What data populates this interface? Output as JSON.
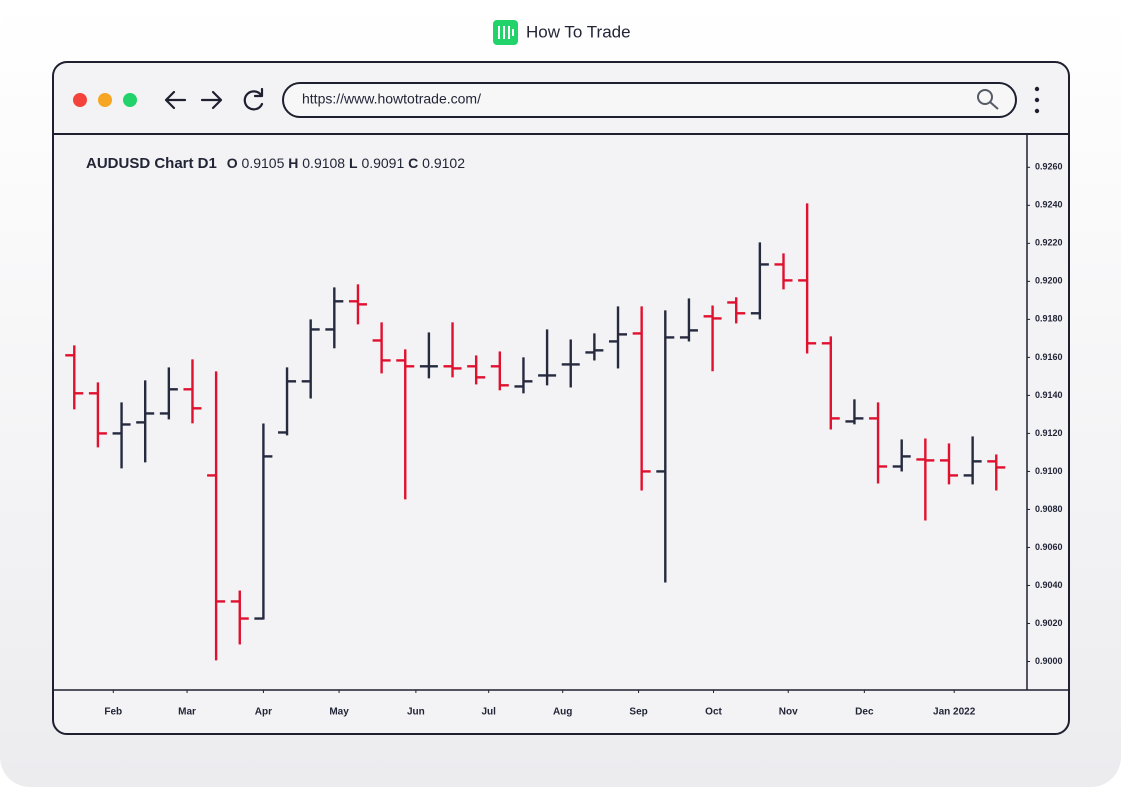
{
  "page": {
    "brand": "How To Trade",
    "url": "https://www.howtotrade.com/"
  },
  "chart_data": {
    "type": "ohlc",
    "title": "AUDUSD Chart D1",
    "summary": [
      {
        "label": "O",
        "value": 0.9105
      },
      {
        "label": "H",
        "value": 0.9108
      },
      {
        "label": "L",
        "value": 0.9091
      },
      {
        "label": "C",
        "value": 0.9102
      }
    ],
    "up_color": "#262a3f",
    "down_color": "#e0102f",
    "categories": [
      null,
      null,
      null,
      null,
      null,
      null,
      null,
      null,
      null,
      null,
      null,
      null,
      null,
      null,
      null,
      null,
      null,
      null,
      null,
      null,
      null,
      null,
      null,
      null,
      null,
      null,
      null,
      null,
      null,
      null,
      null,
      null,
      null,
      null,
      null,
      null,
      null,
      null,
      null,
      null
    ],
    "open": [
      0.91611,
      0.91411,
      0.912,
      0.91258,
      0.91305,
      0.91432,
      0.90979,
      0.90316,
      0.90226,
      0.91205,
      0.91474,
      0.91747,
      0.91895,
      0.91689,
      0.91584,
      0.91553,
      0.91553,
      0.91553,
      0.91553,
      0.91447,
      0.91505,
      0.91563,
      0.91626,
      0.91684,
      0.91726,
      0.91,
      0.91705,
      0.91816,
      0.91889,
      0.91832,
      0.92089,
      0.92005,
      0.91674,
      0.91263,
      0.91279,
      0.91026,
      0.91063,
      0.91058,
      0.90979,
      0.91053
    ],
    "high": [
      0.91658,
      0.91463,
      0.91358,
      0.91474,
      0.91542,
      0.91584,
      0.91521,
      0.90368,
      0.91247,
      0.91542,
      0.91795,
      0.91963,
      0.91979,
      0.91779,
      0.91637,
      0.91726,
      0.91779,
      0.91605,
      0.91626,
      0.91595,
      0.91742,
      0.91689,
      0.91721,
      0.91863,
      0.91863,
      0.91842,
      0.91905,
      0.91868,
      0.91911,
      0.922,
      0.92142,
      0.92405,
      0.91705,
      0.91374,
      0.91358,
      0.91163,
      0.91168,
      0.91142,
      0.91179,
      0.91084
    ],
    "low": [
      0.91332,
      0.91132,
      0.91021,
      0.91053,
      0.91279,
      0.91258,
      0.90011,
      0.90095,
      0.90226,
      0.91195,
      0.91389,
      0.91653,
      0.91779,
      0.91521,
      0.90858,
      0.91495,
      0.915,
      0.91463,
      0.91432,
      0.91416,
      0.91458,
      0.91447,
      0.91589,
      0.91547,
      0.90905,
      0.90421,
      0.91689,
      0.91532,
      0.91784,
      0.91805,
      0.91963,
      0.91626,
      0.91226,
      0.91253,
      0.90942,
      0.91005,
      0.90747,
      0.90937,
      0.90937,
      0.90905
    ],
    "close": [
      0.91411,
      0.912,
      0.91247,
      0.91305,
      0.91432,
      0.91332,
      0.90316,
      0.90226,
      0.91079,
      0.91474,
      0.91747,
      0.91895,
      0.91879,
      0.91584,
      0.91553,
      0.91553,
      0.91542,
      0.91495,
      0.91453,
      0.91474,
      0.91505,
      0.91563,
      0.91637,
      0.91721,
      0.91,
      0.91705,
      0.91742,
      0.91805,
      0.91832,
      0.92089,
      0.92005,
      0.91674,
      0.91279,
      0.91279,
      0.91026,
      0.91079,
      0.91058,
      0.90979,
      0.91053,
      0.91021
    ],
    "xlim": [
      -0.9,
      40.3
    ],
    "xticks": [
      {
        "value": 1.65,
        "label": "Feb"
      },
      {
        "value": 4.77,
        "label": "Mar"
      },
      {
        "value": 8.0,
        "label": "Apr"
      },
      {
        "value": 11.2,
        "label": "May"
      },
      {
        "value": 14.45,
        "label": "Jun"
      },
      {
        "value": 17.53,
        "label": "Jul"
      },
      {
        "value": 20.66,
        "label": "Aug"
      },
      {
        "value": 23.87,
        "label": "Sep"
      },
      {
        "value": 27.04,
        "label": "Oct"
      },
      {
        "value": 30.2,
        "label": "Nov"
      },
      {
        "value": 33.42,
        "label": "Dec"
      },
      {
        "value": 37.22,
        "label": "Jan 2022"
      }
    ],
    "ylim": [
      0.8985,
      0.9277
    ],
    "yticks": [
      {
        "value": 0.9,
        "label": "0.9000"
      },
      {
        "value": 0.902,
        "label": "0.9020"
      },
      {
        "value": 0.904,
        "label": "0.9040"
      },
      {
        "value": 0.906,
        "label": "0.9060"
      },
      {
        "value": 0.908,
        "label": "0.9080"
      },
      {
        "value": 0.91,
        "label": "0.9100"
      },
      {
        "value": 0.912,
        "label": "0.9120"
      },
      {
        "value": 0.914,
        "label": "0.9140"
      },
      {
        "value": 0.916,
        "label": "0.9160"
      },
      {
        "value": 0.918,
        "label": "0.9180"
      },
      {
        "value": 0.92,
        "label": "0.9200"
      },
      {
        "value": 0.922,
        "label": "0.9220"
      },
      {
        "value": 0.924,
        "label": "0.9240"
      },
      {
        "value": 0.926,
        "label": "0.9260"
      }
    ]
  }
}
